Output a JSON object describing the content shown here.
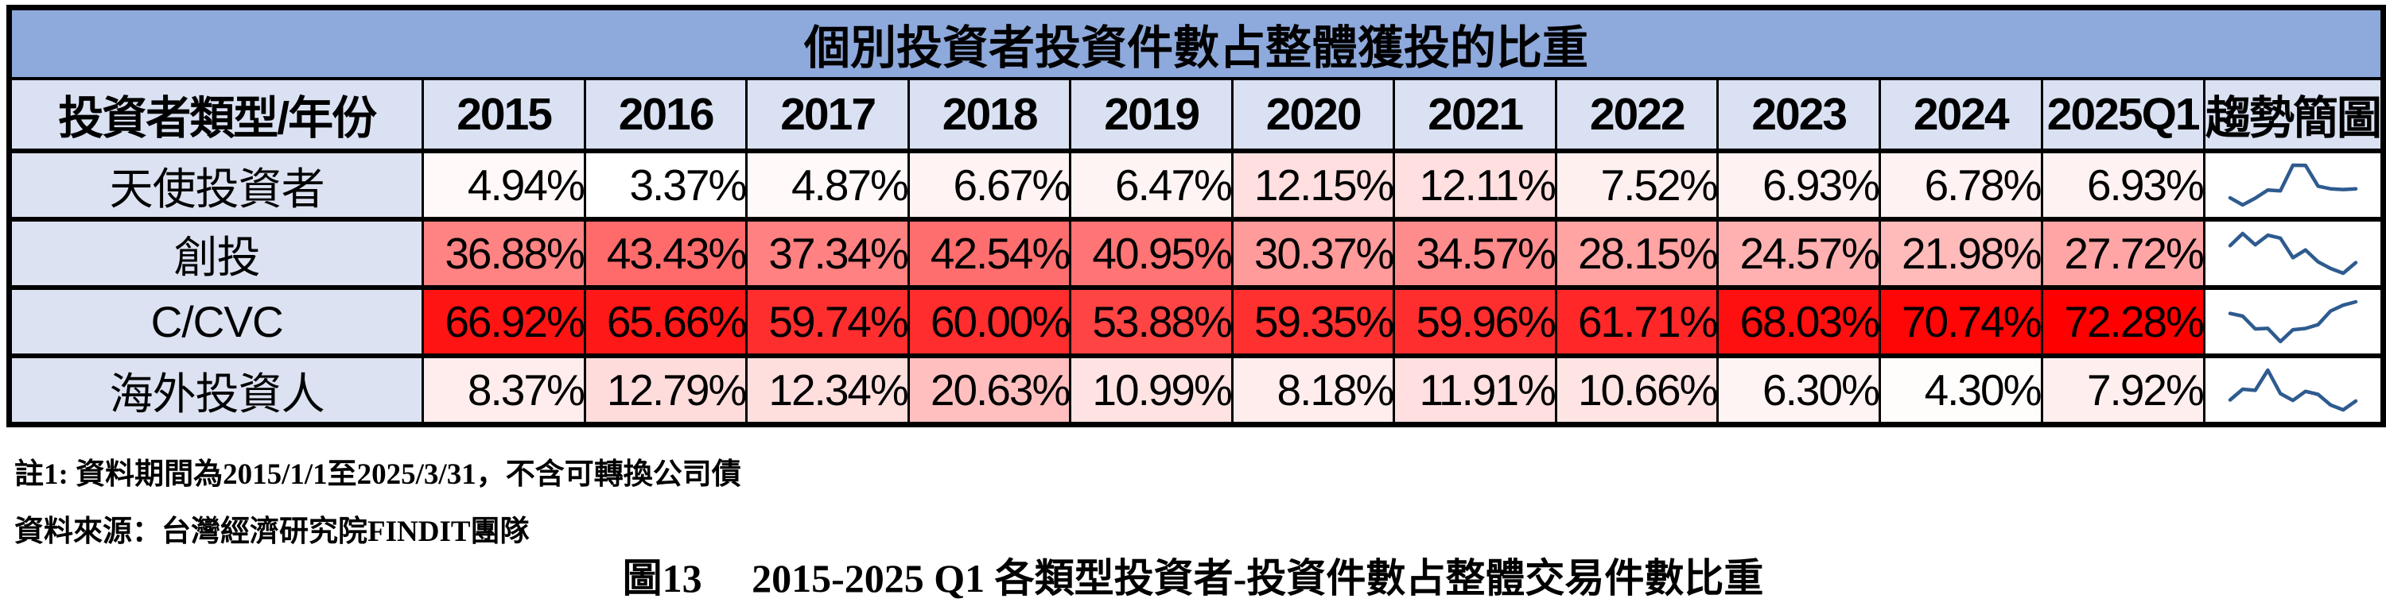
{
  "page": {
    "notes": {
      "note1": "註1: 資料期間為2015/1/1至2025/3/31，不含可轉換公司債",
      "source": "資料來源：台灣經濟研究院FINDIT團隊"
    },
    "caption": "圖13　 2015-2025 Q1  各類型投資者-投資件數占整體交易件數比重"
  },
  "chart_data": {
    "type": "table",
    "title": "個別投資者投資件數占整體獲投的比重",
    "corner_header": "投資者類型/年份",
    "categories": [
      "2015",
      "2016",
      "2017",
      "2018",
      "2019",
      "2020",
      "2021",
      "2022",
      "2023",
      "2024",
      "2025Q1"
    ],
    "sparkline_header": "趨勢簡圖",
    "value_unit": "%",
    "series": [
      {
        "name": "天使投資者",
        "values": [
          4.94,
          3.37,
          4.87,
          6.67,
          6.47,
          12.15,
          12.11,
          7.52,
          6.93,
          6.78,
          6.93
        ]
      },
      {
        "name": "創投",
        "values": [
          36.88,
          43.43,
          37.34,
          42.54,
          40.95,
          30.37,
          34.57,
          28.15,
          24.57,
          21.98,
          27.72
        ]
      },
      {
        "name": "C/CVC",
        "values": [
          66.92,
          65.66,
          59.74,
          60.0,
          53.88,
          59.35,
          59.96,
          61.71,
          68.03,
          70.74,
          72.28
        ]
      },
      {
        "name": "海外投資人",
        "values": [
          8.37,
          12.79,
          12.34,
          20.63,
          10.99,
          8.18,
          11.91,
          10.66,
          6.3,
          4.3,
          7.92
        ]
      }
    ],
    "heatmap": {
      "min_value": 3.37,
      "max_value": 72.28,
      "min_color": "#FFFFFF",
      "max_color": "#FF0000"
    },
    "layout": {
      "label_col_width": 527,
      "year_col_width": 205,
      "spark_col_width": 192,
      "sparkline_scaling": "per-row min-max"
    },
    "colors": {
      "title_bg": "#8EA9DB",
      "header_bg": "#D9E1F2",
      "label_bg": "#DCE2F1",
      "border": "#000000",
      "text": "#000000",
      "sparkline": "#2E5B8F"
    }
  }
}
